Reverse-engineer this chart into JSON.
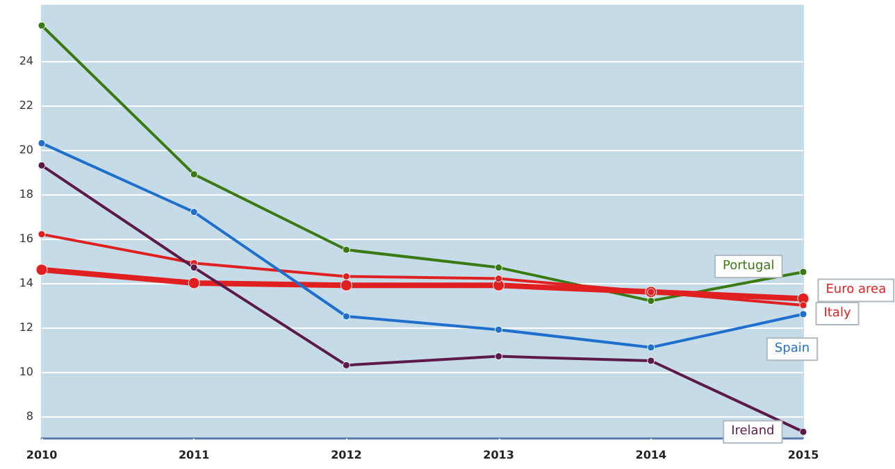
{
  "chart_data": {
    "type": "line",
    "categories": [
      "2010",
      "2011",
      "2012",
      "2013",
      "2014",
      "2015"
    ],
    "series": [
      {
        "name": "Portugal",
        "color": "#3a7a12",
        "values": [
          25.6,
          18.9,
          15.5,
          14.7,
          13.2,
          14.5
        ]
      },
      {
        "name": "Euro area",
        "color": "#e02020",
        "values": [
          14.6,
          14.0,
          13.9,
          13.9,
          13.6,
          13.3
        ]
      },
      {
        "name": "Italy",
        "color": "#e02020",
        "values": [
          16.2,
          14.9,
          14.3,
          14.2,
          13.6,
          13.0
        ]
      },
      {
        "name": "Spain",
        "color": "#1f6fcc",
        "values": [
          20.3,
          17.2,
          12.5,
          11.9,
          11.1,
          12.6
        ]
      },
      {
        "name": "Ireland",
        "color": "#5c1a4a",
        "values": [
          19.3,
          14.7,
          10.3,
          10.7,
          10.5,
          7.3
        ]
      }
    ],
    "ylim": [
      7,
      26.5
    ],
    "yticks": [
      8,
      10,
      12,
      14,
      16,
      18,
      20,
      22,
      24
    ],
    "grid": "y",
    "marker": "circle",
    "line_style": "solid"
  }
}
